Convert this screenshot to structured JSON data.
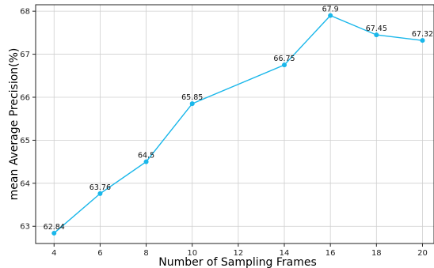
{
  "chart_data": {
    "type": "line",
    "xlabel": "Number of Sampling Frames",
    "ylabel": "mean Average Precision(%)",
    "x": [
      4,
      6,
      8,
      10,
      14,
      16,
      18,
      20
    ],
    "series": [
      {
        "values": [
          62.84,
          63.76,
          64.5,
          65.85,
          66.75,
          67.9,
          67.45,
          67.32
        ],
        "labels": [
          "62.84",
          "63.76",
          "64.5",
          "65.85",
          "66.75",
          "67.9",
          "67.45",
          "67.32"
        ],
        "color": "#1ab7ea",
        "marker": "circle"
      }
    ],
    "xticks": [
      4,
      6,
      8,
      10,
      12,
      14,
      16,
      18,
      20
    ],
    "xtick_labels": [
      "4",
      "6",
      "8",
      "10",
      "12",
      "14",
      "16",
      "18",
      "20"
    ],
    "yticks": [
      63,
      64,
      65,
      66,
      67,
      68
    ],
    "ytick_labels": [
      "63",
      "64",
      "65",
      "66",
      "67",
      "68"
    ],
    "xlim": [
      3.2,
      20.5
    ],
    "ylim": [
      62.6,
      68.15
    ],
    "grid": true
  }
}
